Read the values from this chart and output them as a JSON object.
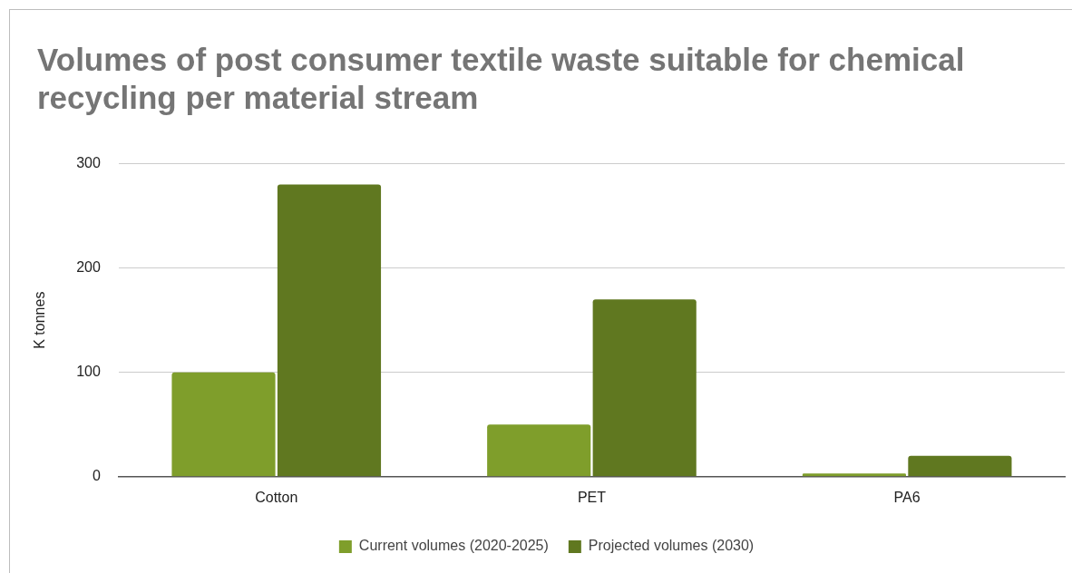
{
  "chart_data": {
    "type": "bar",
    "title": "Volumes of post consumer textile waste suitable for chemical recycling per material stream",
    "ylabel": "K tonnes",
    "categories": [
      "Cotton",
      "PET",
      "PA6"
    ],
    "series": [
      {
        "name": "Current volumes (2020-2025)",
        "color": "#7f9e2b",
        "values": [
          100,
          50,
          3
        ]
      },
      {
        "name": "Projected volumes (2030)",
        "color": "#607820",
        "values": [
          280,
          170,
          20
        ]
      }
    ],
    "ylim": [
      0,
      300
    ],
    "yticks": [
      0,
      100,
      200,
      300
    ],
    "grid": "y",
    "legend": "bottom"
  }
}
